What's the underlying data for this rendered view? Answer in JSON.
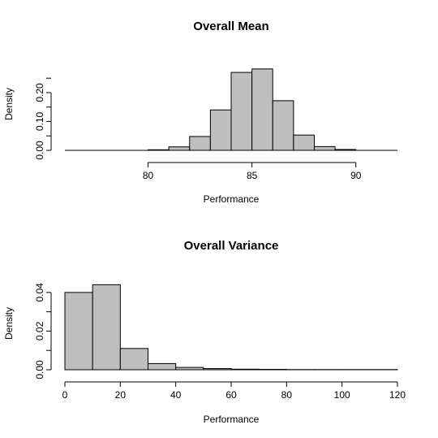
{
  "chart_data": [
    {
      "type": "bar",
      "title": "Overall Mean",
      "xlabel": "Performance",
      "ylabel": "Density",
      "bin_edges": [
        80,
        81,
        82,
        83,
        84,
        85,
        86,
        87,
        88,
        89,
        90
      ],
      "values": [
        0.002,
        0.012,
        0.048,
        0.14,
        0.27,
        0.282,
        0.172,
        0.053,
        0.013,
        0.003
      ],
      "xlim": [
        76,
        92
      ],
      "ylim": [
        0,
        0.29
      ],
      "xticks": [
        80,
        85,
        90
      ],
      "yticks": [
        0.0,
        0.1,
        0.2
      ],
      "ytick_labels": [
        "0.00",
        "0.10",
        "0.20"
      ],
      "baseline_extent": [
        76,
        92
      ],
      "grid": false
    },
    {
      "type": "bar",
      "title": "Overall Variance",
      "xlabel": "Performance",
      "ylabel": "Density",
      "bin_edges": [
        0,
        10,
        20,
        30,
        40,
        50,
        60,
        70,
        80,
        90,
        100,
        110,
        120
      ],
      "values": [
        0.04,
        0.044,
        0.011,
        0.0032,
        0.0012,
        0.0006,
        0.0003,
        0.0002,
        0.0001,
        0.0001,
        0.0001,
        0.0001
      ],
      "xlim": [
        0,
        120
      ],
      "ylim": [
        0,
        0.045
      ],
      "xticks": [
        0,
        20,
        40,
        60,
        80,
        100,
        120
      ],
      "yticks": [
        0.0,
        0.02,
        0.04
      ],
      "ytick_labels": [
        "0.00",
        "0.02",
        "0.04"
      ],
      "grid": false
    }
  ]
}
